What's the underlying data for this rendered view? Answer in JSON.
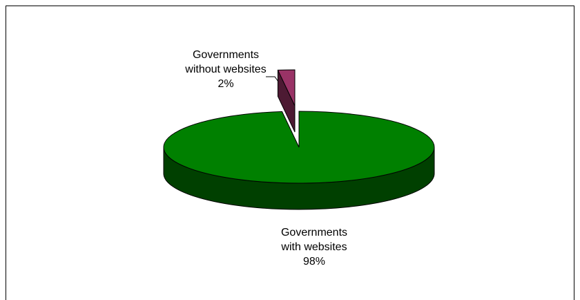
{
  "chart_data": {
    "type": "pie",
    "style": "3d-exploded",
    "categories": [
      "Governments without websites",
      "Governments with websites"
    ],
    "values": [
      2,
      98
    ],
    "unit": "%",
    "colors": {
      "Governments without websites": {
        "top": "#993366",
        "side": "#4d1a33"
      },
      "Governments with websites": {
        "top": "#008000",
        "side": "#004000"
      }
    },
    "labels": [
      {
        "line1": "Governments",
        "line2": "without websites",
        "value": "2%"
      },
      {
        "line1": "Governments",
        "line2": "with websites",
        "value": "98%"
      }
    ],
    "legend": "none",
    "title": ""
  }
}
